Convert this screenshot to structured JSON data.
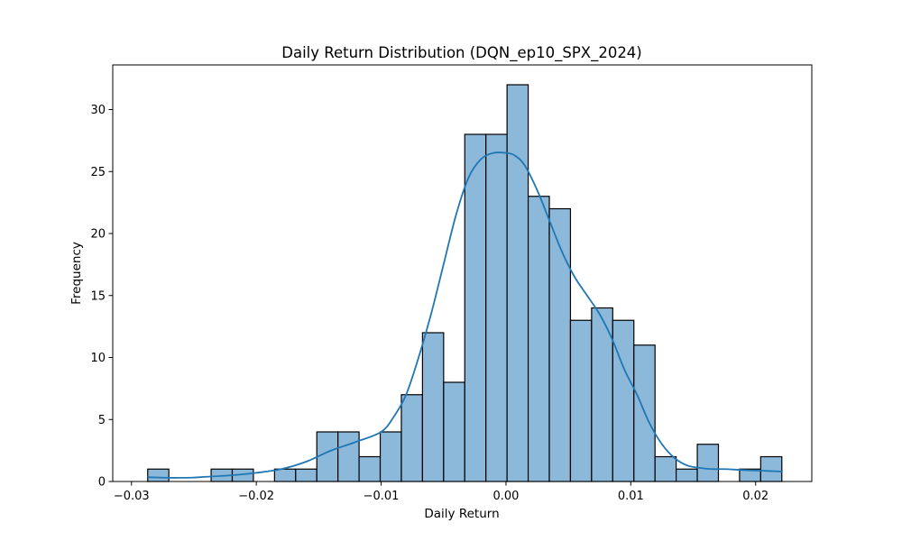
{
  "chart_data": {
    "type": "bar",
    "subtype": "histogram-with-kde",
    "title": "Daily Return Distribution (DQN_ep10_SPX_2024)",
    "xlabel": "Daily Return",
    "ylabel": "Frequency",
    "xlim": [
      -0.0315,
      0.0245
    ],
    "ylim": [
      0,
      33.6
    ],
    "x_ticks": [
      -0.03,
      -0.02,
      -0.01,
      0.0,
      0.01,
      0.02
    ],
    "x_tick_labels": [
      "−0.03",
      "−0.02",
      "−0.01",
      "0.00",
      "0.01",
      "0.02"
    ],
    "y_ticks": [
      0,
      5,
      10,
      15,
      20,
      25,
      30
    ],
    "y_tick_labels": [
      "0",
      "5",
      "10",
      "15",
      "20",
      "25",
      "30"
    ],
    "grid": false,
    "legend": "none",
    "bar_fill": "#8cb8da",
    "bar_edge": "#000000",
    "kde_color": "#1f77b4",
    "bins": {
      "start": -0.0287,
      "end": 0.0221,
      "counts": [
        1,
        0,
        0,
        1,
        1,
        0,
        1,
        1,
        4,
        4,
        2,
        4,
        7,
        12,
        8,
        28,
        28,
        32,
        23,
        22,
        13,
        14,
        13,
        11,
        2,
        1,
        3,
        0,
        1,
        2
      ]
    },
    "kde": {
      "x": [
        -0.0287,
        -0.027,
        -0.026,
        -0.025,
        -0.024,
        -0.022,
        -0.02,
        -0.018,
        -0.016,
        -0.014,
        -0.012,
        -0.01,
        -0.009,
        -0.008,
        -0.007,
        -0.006,
        -0.005,
        -0.004,
        -0.003,
        -0.002,
        -0.001,
        0.0,
        0.0007,
        0.0015,
        0.0025,
        0.0035,
        0.0045,
        0.0055,
        0.0065,
        0.0075,
        0.0085,
        0.0095,
        0.0105,
        0.0115,
        0.0125,
        0.0135,
        0.0145,
        0.0155,
        0.0165,
        0.0175,
        0.0185,
        0.0195,
        0.021,
        0.0221
      ],
      "y": [
        0.35,
        0.3,
        0.3,
        0.32,
        0.38,
        0.5,
        0.7,
        1.0,
        1.6,
        2.5,
        3.2,
        4.0,
        5.2,
        7.0,
        10.0,
        13.5,
        17.5,
        21.5,
        24.5,
        26.0,
        26.5,
        26.5,
        26.3,
        25.5,
        23.5,
        21.0,
        18.5,
        16.5,
        15.0,
        13.5,
        11.5,
        9.0,
        7.0,
        4.7,
        3.0,
        1.9,
        1.3,
        1.1,
        1.0,
        1.0,
        0.95,
        0.9,
        0.85,
        0.8
      ]
    }
  }
}
